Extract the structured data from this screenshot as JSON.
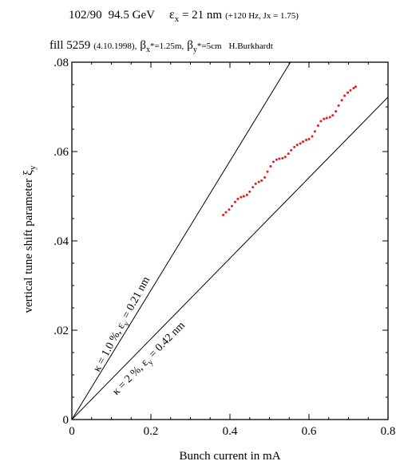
{
  "header": {
    "line1": {
      "optics": "102/90",
      "energy": "94.5 GeV",
      "epsilon": "ε",
      "epsilon_sub": "x",
      "emittance": " = 21 nm",
      "note": "(+120 Hz, Jx = 1.75)"
    },
    "line2": {
      "fill": "fill 5259",
      "date": "(4.10.1998),",
      "beta_x_sym": "β",
      "beta_x_sub": "x",
      "beta_x_val": "*=1.25m,",
      "beta_y_sym": "β",
      "beta_y_sub": "y",
      "beta_y_val": "*=5cm",
      "author": "H.Burkhardt"
    }
  },
  "chart_data": {
    "type": "line",
    "xlabel": "Bunch current in mA",
    "ylabel_text": "vertical tune shift parameter ",
    "ylabel_symbol": "ξ",
    "ylabel_sub": "y",
    "xlim": [
      0,
      0.8
    ],
    "ylim": [
      0,
      0.08
    ],
    "x_ticks": [
      0,
      0.2,
      0.4,
      0.6,
      0.8
    ],
    "x_tick_labels": [
      "0",
      "0.2",
      "0.4",
      "0.6",
      "0.8"
    ],
    "y_ticks": [
      0,
      0.02,
      0.04,
      0.06,
      0.08
    ],
    "y_tick_labels": [
      "0",
      ".02",
      ".04",
      ".06",
      ".08"
    ],
    "grid": false,
    "lines": [
      {
        "label": "κ = 1.0 %, ε",
        "label_sub": "y",
        "label_tail": " = 0.21 nm",
        "x": [
          0,
          0.553
        ],
        "y": [
          0,
          0.08
        ],
        "color": "#000000"
      },
      {
        "label": "κ = 2 %, ε",
        "label_sub": "y",
        "label_tail": " = 0.42 nm",
        "x": [
          0,
          0.8
        ],
        "y": [
          0,
          0.0722
        ],
        "color": "#000000"
      }
    ],
    "series": [
      {
        "style": "dotted",
        "color": "#e8191b",
        "x": [
          0.383,
          0.39,
          0.398,
          0.405,
          0.413,
          0.42,
          0.428,
          0.435,
          0.443,
          0.45,
          0.458,
          0.465,
          0.473,
          0.48,
          0.488,
          0.495,
          0.503,
          0.51,
          0.518,
          0.525,
          0.533,
          0.54,
          0.548,
          0.555,
          0.563,
          0.57,
          0.578,
          0.585,
          0.593,
          0.6,
          0.608,
          0.615,
          0.623,
          0.63,
          0.638,
          0.645,
          0.653,
          0.66,
          0.668,
          0.675,
          0.683,
          0.69,
          0.698,
          0.705,
          0.713,
          0.718
        ],
        "y": [
          0.0458,
          0.0464,
          0.047,
          0.0478,
          0.0487,
          0.0494,
          0.0498,
          0.05,
          0.0503,
          0.051,
          0.052,
          0.0528,
          0.0532,
          0.0535,
          0.0542,
          0.0555,
          0.0567,
          0.0577,
          0.0582,
          0.0584,
          0.0585,
          0.0588,
          0.0595,
          0.0603,
          0.061,
          0.0615,
          0.0618,
          0.0622,
          0.0626,
          0.0628,
          0.0634,
          0.0645,
          0.0658,
          0.0668,
          0.0673,
          0.0675,
          0.0677,
          0.0681,
          0.069,
          0.0703,
          0.0715,
          0.0725,
          0.0732,
          0.0737,
          0.0742,
          0.0745
        ]
      }
    ]
  }
}
